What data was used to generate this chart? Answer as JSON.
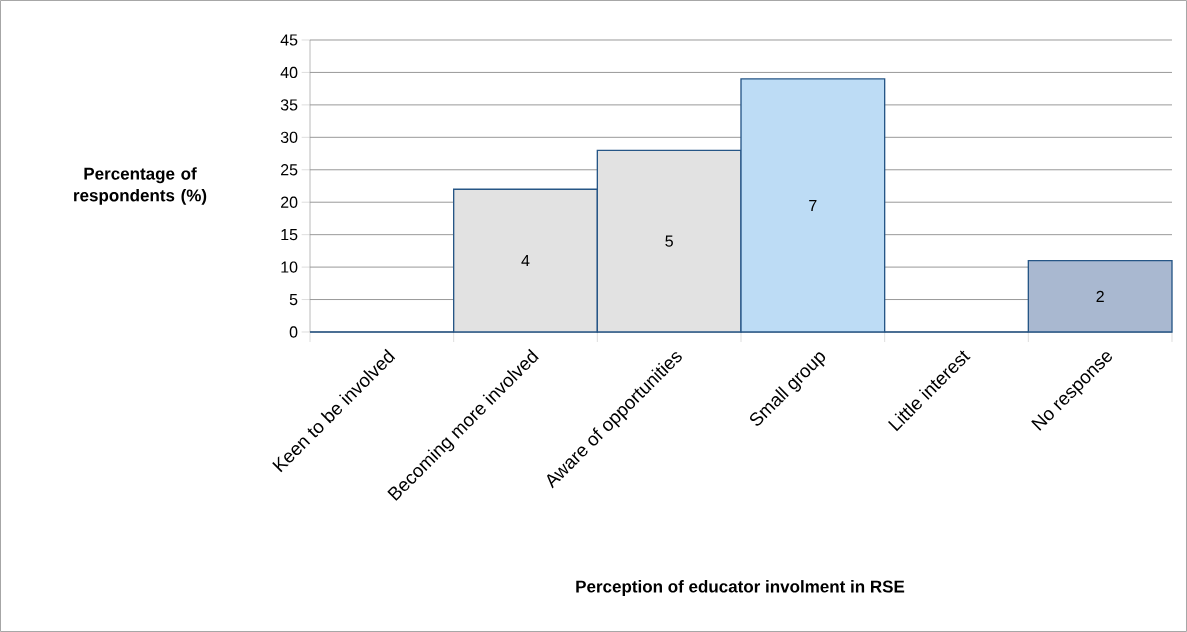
{
  "chart_data": {
    "type": "bar",
    "xlabel": "Perception of educator involment in RSE",
    "ylabel": "Percentage of respondents (%)",
    "categories": [
      "Keen to be involved",
      "Becoming more involved",
      "Aware of opportunities",
      "Small group",
      "Little interest",
      "No response"
    ],
    "values": [
      0,
      22,
      28,
      39,
      0,
      11
    ],
    "colors": [
      "#e2e2e2",
      "#e2e2e2",
      "#e2e2e2",
      "#bddcf5",
      "#e2e2e2",
      "#a9b8d0"
    ],
    "annotations": [
      "4",
      "5",
      "7",
      "2"
    ],
    "ylim": [
      0,
      45
    ],
    "yticks": [
      0,
      5,
      10,
      15,
      20,
      25,
      30,
      35,
      40,
      45
    ],
    "grid": "y"
  }
}
